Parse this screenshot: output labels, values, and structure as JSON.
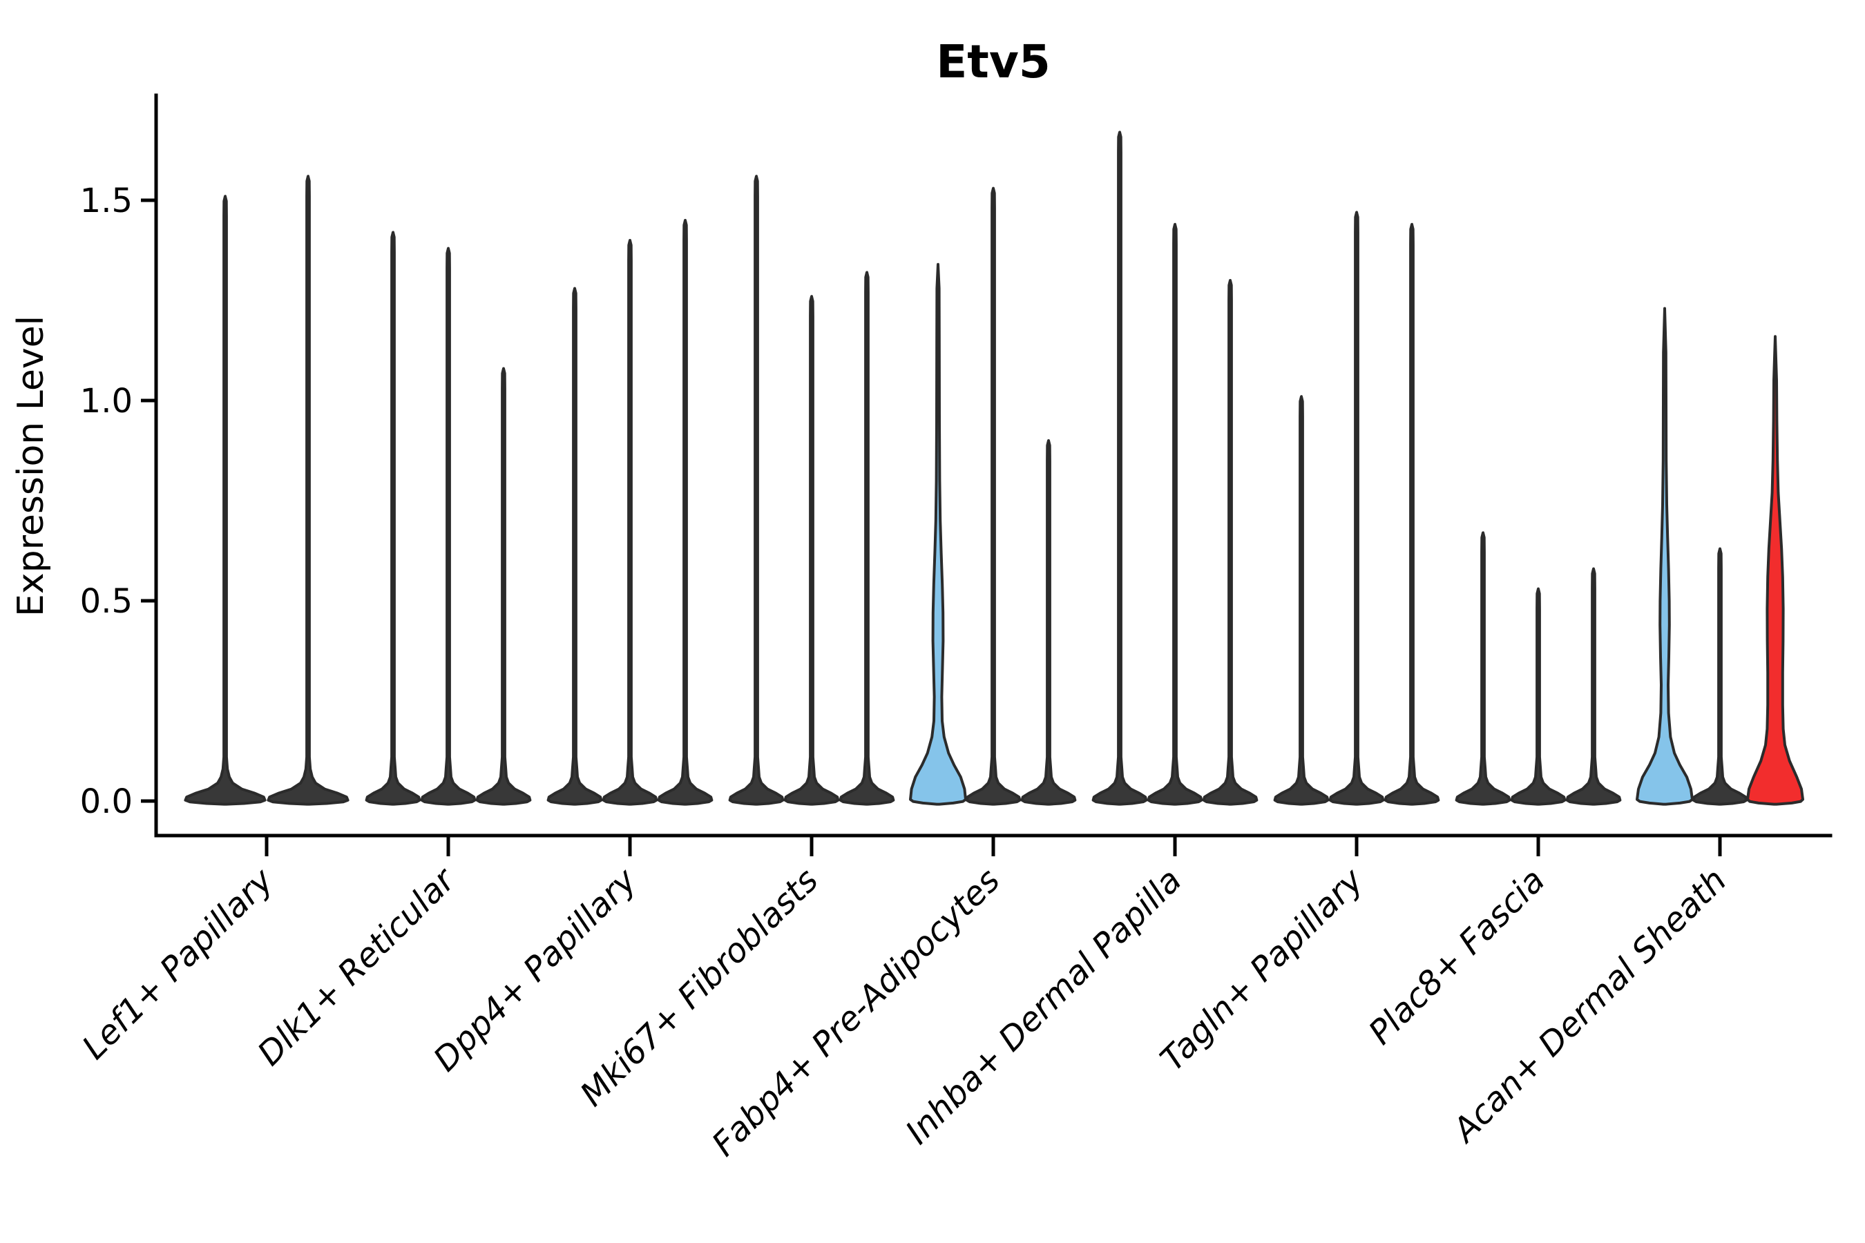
{
  "chart_data": {
    "type": "violin",
    "title": "Etv5",
    "ylabel": "Expression Level",
    "xlabel": "",
    "ytick_labels": [
      "0.0",
      "0.5",
      "1.0",
      "1.5"
    ],
    "ytick_values": [
      0.0,
      0.5,
      1.0,
      1.5
    ],
    "ylim": [
      -0.07,
      1.78
    ],
    "grid": "off",
    "legend": "none",
    "categories": [
      "Lef1+ Papillary",
      "Dlk1+ Reticular",
      "Dpp4+ Papillary",
      "Mki67+ Fibroblasts",
      "Fabp4+ Pre-Adipocytes",
      "Inhba+ Dermal Papilla",
      "Tagln+ Papillary",
      "Plac8+ Fascia",
      "Acan+ Dermal Sheath"
    ],
    "description": "Stacked single-gene violin plot of Etv5 expression; each category holds adjacent thin violins (most cells at 0 giving a flat blob at baseline with a thin spike to the max expression). One violin in Fabp4+ Pre-Adipocytes and two in Acan+ Dermal Sheath are highlighted with color and show visible density bodies.",
    "groups": [
      {
        "category": "Lef1+ Papillary",
        "violins": [
          {
            "max": 1.51,
            "fill": "default"
          },
          {
            "max": 1.56,
            "fill": "default"
          }
        ]
      },
      {
        "category": "Dlk1+ Reticular",
        "violins": [
          {
            "max": 1.42,
            "fill": "default"
          },
          {
            "max": 1.38,
            "fill": "default"
          },
          {
            "max": 1.08,
            "fill": "default"
          }
        ]
      },
      {
        "category": "Dpp4+ Papillary",
        "violins": [
          {
            "max": 1.28,
            "fill": "default"
          },
          {
            "max": 1.4,
            "fill": "default"
          },
          {
            "max": 1.45,
            "fill": "default"
          }
        ]
      },
      {
        "category": "Mki67+ Fibroblasts",
        "violins": [
          {
            "max": 1.56,
            "fill": "default"
          },
          {
            "max": 1.26,
            "fill": "default"
          },
          {
            "max": 1.32,
            "fill": "default"
          }
        ]
      },
      {
        "category": "Fabp4+ Pre-Adipocytes",
        "violins": [
          {
            "max": 1.34,
            "fill": "blue",
            "profile": [
              [
                -0.008,
                0.05
              ],
              [
                -0.005,
                0.55
              ],
              [
                -0.001,
                0.9
              ],
              [
                0.004,
                1.0
              ],
              [
                0.03,
                0.96
              ],
              [
                0.06,
                0.82
              ],
              [
                0.09,
                0.58
              ],
              [
                0.12,
                0.38
              ],
              [
                0.16,
                0.22
              ],
              [
                0.2,
                0.15
              ],
              [
                0.26,
                0.135
              ],
              [
                0.33,
                0.16
              ],
              [
                0.4,
                0.185
              ],
              [
                0.47,
                0.18
              ],
              [
                0.54,
                0.155
              ],
              [
                0.62,
                0.115
              ],
              [
                0.7,
                0.08
              ],
              [
                0.8,
                0.06
              ],
              [
                0.95,
                0.05
              ],
              [
                1.15,
                0.045
              ],
              [
                1.28,
                0.04
              ],
              [
                1.34,
                0.0
              ]
            ]
          },
          {
            "max": 1.53,
            "fill": "default"
          },
          {
            "max": 0.9,
            "fill": "default"
          }
        ]
      },
      {
        "category": "Inhba+ Dermal Papilla",
        "violins": [
          {
            "max": 1.67,
            "fill": "default"
          },
          {
            "max": 1.44,
            "fill": "default"
          },
          {
            "max": 1.3,
            "fill": "default"
          }
        ]
      },
      {
        "category": "Tagln+ Papillary",
        "violins": [
          {
            "max": 1.01,
            "fill": "default"
          },
          {
            "max": 1.47,
            "fill": "default"
          },
          {
            "max": 1.44,
            "fill": "default"
          }
        ]
      },
      {
        "category": "Plac8+ Fascia",
        "violins": [
          {
            "max": 0.67,
            "fill": "default"
          },
          {
            "max": 0.53,
            "fill": "default"
          },
          {
            "max": 0.58,
            "fill": "default"
          }
        ]
      },
      {
        "category": "Acan+ Dermal Sheath",
        "violins": [
          {
            "max": 1.23,
            "fill": "blue",
            "profile": [
              [
                -0.008,
                0.05
              ],
              [
                -0.005,
                0.55
              ],
              [
                -0.001,
                0.9
              ],
              [
                0.004,
                1.0
              ],
              [
                0.03,
                0.95
              ],
              [
                0.06,
                0.8
              ],
              [
                0.09,
                0.55
              ],
              [
                0.12,
                0.35
              ],
              [
                0.16,
                0.21
              ],
              [
                0.22,
                0.14
              ],
              [
                0.29,
                0.125
              ],
              [
                0.36,
                0.15
              ],
              [
                0.44,
                0.17
              ],
              [
                0.5,
                0.165
              ],
              [
                0.58,
                0.14
              ],
              [
                0.66,
                0.105
              ],
              [
                0.74,
                0.075
              ],
              [
                0.85,
                0.055
              ],
              [
                1.0,
                0.05
              ],
              [
                1.12,
                0.045
              ],
              [
                1.23,
                0.0
              ]
            ]
          },
          {
            "max": 0.63,
            "fill": "default"
          },
          {
            "max": 1.16,
            "fill": "red",
            "profile": [
              [
                -0.008,
                0.05
              ],
              [
                -0.005,
                0.6
              ],
              [
                -0.001,
                0.92
              ],
              [
                0.004,
                1.0
              ],
              [
                0.03,
                0.95
              ],
              [
                0.06,
                0.78
              ],
              [
                0.1,
                0.52
              ],
              [
                0.14,
                0.35
              ],
              [
                0.18,
                0.29
              ],
              [
                0.24,
                0.27
              ],
              [
                0.32,
                0.27
              ],
              [
                0.4,
                0.285
              ],
              [
                0.48,
                0.29
              ],
              [
                0.56,
                0.27
              ],
              [
                0.63,
                0.23
              ],
              [
                0.7,
                0.17
              ],
              [
                0.77,
                0.11
              ],
              [
                0.85,
                0.08
              ],
              [
                0.95,
                0.06
              ],
              [
                1.05,
                0.05
              ],
              [
                1.16,
                0.0
              ]
            ]
          }
        ]
      }
    ],
    "colors": {
      "background": "#ffffff",
      "violin_fill_default": "#383838",
      "violin_outline": "#2b2b2b",
      "highlight_blue": "#85C4EA",
      "highlight_red": "#F22D2D",
      "axis": "#000000"
    }
  }
}
